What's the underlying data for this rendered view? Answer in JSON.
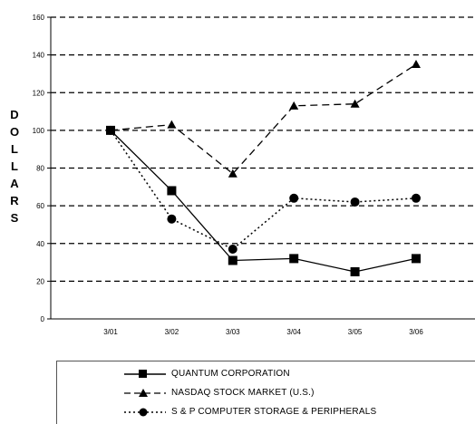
{
  "chart_data": {
    "type": "line",
    "categories": [
      "3/01",
      "3/02",
      "3/03",
      "3/04",
      "3/05",
      "3/06"
    ],
    "ylim": [
      0,
      160
    ],
    "yticks": [
      "0",
      "20",
      "40",
      "60",
      "80",
      "100",
      "120",
      "140",
      "160"
    ],
    "ylabel": "DOLLARS",
    "grid": "horizontal-dashed",
    "legend_position": "bottom",
    "series": [
      {
        "name": "QUANTUM CORPORATION",
        "values": [
          100,
          68,
          31,
          32,
          25,
          32
        ],
        "style": "solid",
        "marker": "square"
      },
      {
        "name": "NASDAQ STOCK MARKET (U.S.)",
        "values": [
          100,
          103,
          77,
          113,
          114,
          135
        ],
        "style": "dashed",
        "marker": "triangle"
      },
      {
        "name": "S & P COMPUTER STORAGE & PERIPHERALS",
        "values": [
          100,
          53,
          37,
          64,
          62,
          64
        ],
        "style": "dotted",
        "marker": "circle"
      }
    ]
  },
  "colors": {
    "line": "#000000",
    "grid": "#000000"
  }
}
